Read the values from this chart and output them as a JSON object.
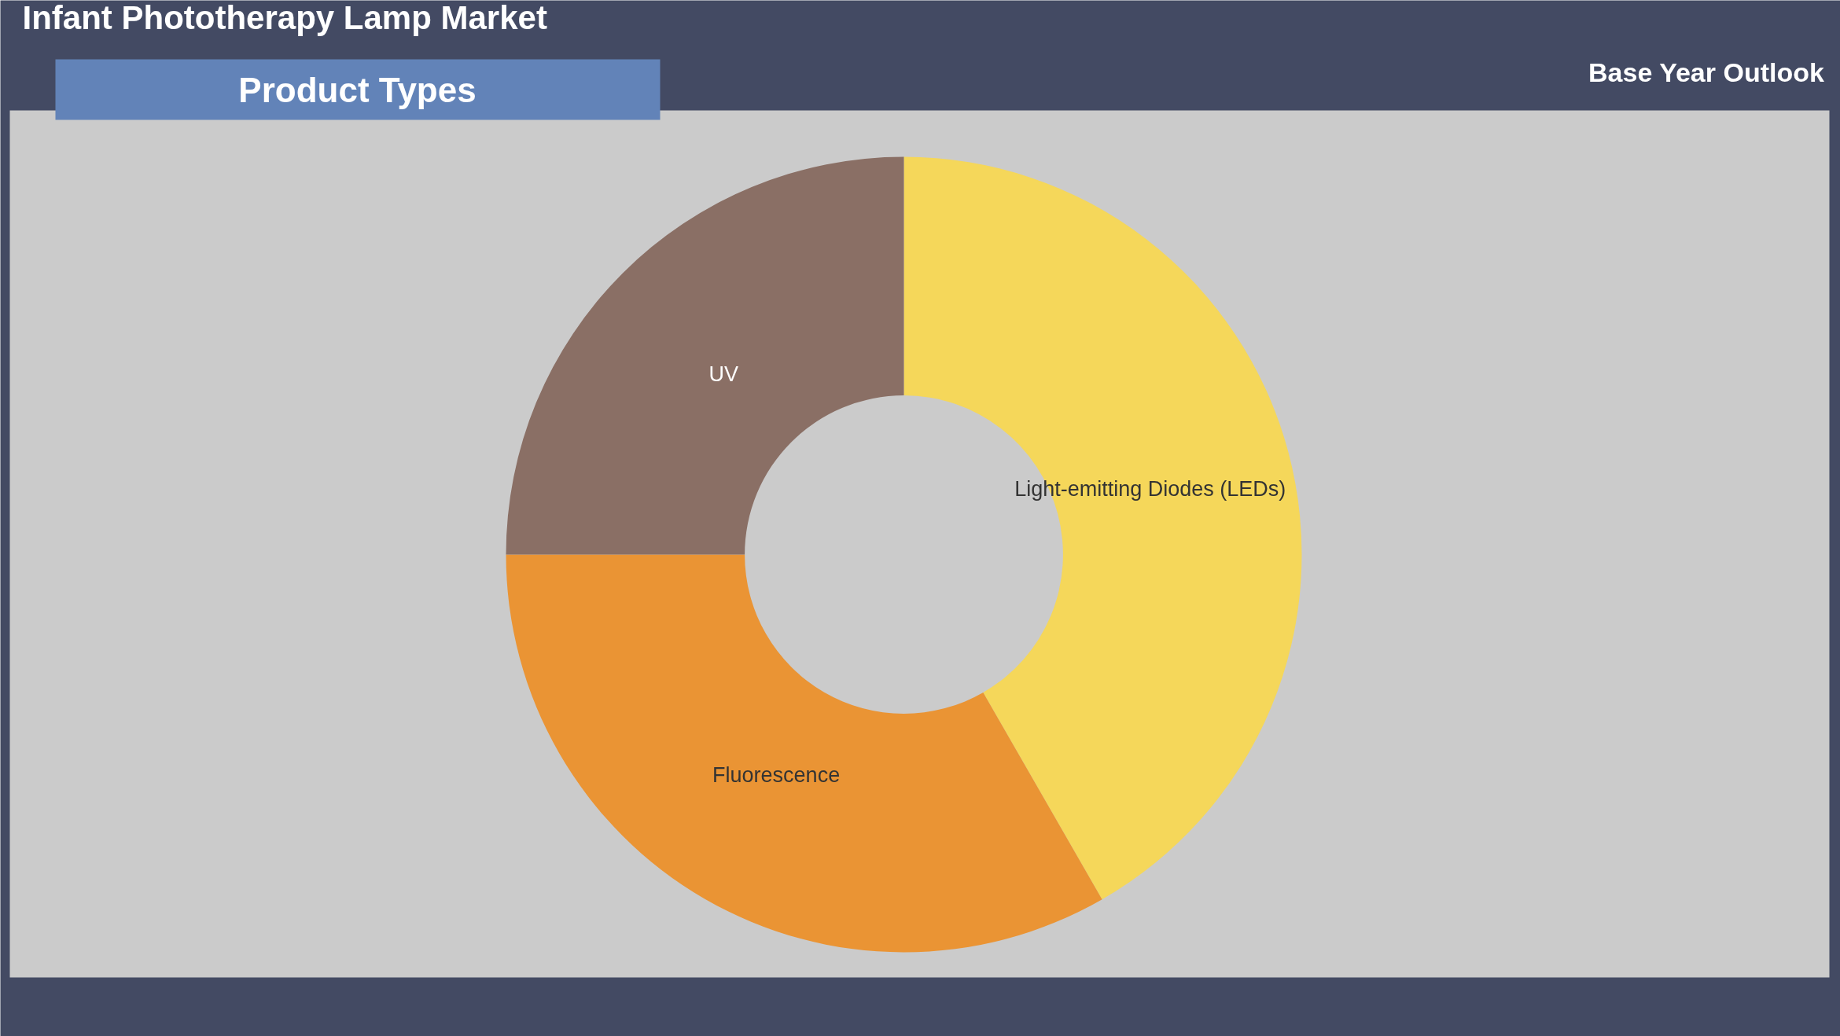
{
  "chart_data": {
    "type": "donut",
    "title": "Infant Phototherapy Lamp Market",
    "subtitle": "Product Types",
    "annotations": [
      "Base Year Outlook"
    ],
    "categories": [
      "Light-emitting Diodes (LEDs)",
      "Fluorescence",
      "UV"
    ],
    "values": [
      41.7,
      33.3,
      25
    ],
    "colors": [
      "#f5d75a",
      "#ea9434",
      "#8a6f65"
    ]
  }
}
